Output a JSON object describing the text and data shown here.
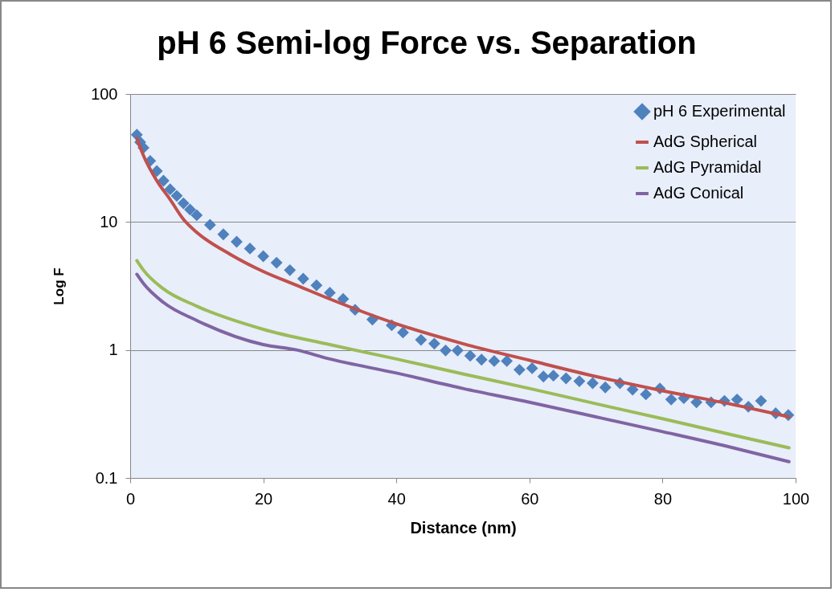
{
  "chart_data": {
    "type": "line",
    "title": "pH 6 Semi-log Force vs. Separation",
    "xlabel": "Distance (nm)",
    "ylabel": "Log F",
    "xlim": [
      0,
      100
    ],
    "xticks": [
      0,
      20,
      40,
      60,
      80,
      100
    ],
    "ylim": [
      0.1,
      100
    ],
    "yticks": [
      0.1,
      1,
      10,
      100
    ],
    "log": "y",
    "grid": "y",
    "legend": "top right",
    "series": [
      {
        "name": "pH 6 Experimental",
        "type": "scatter",
        "marker": "diamond",
        "color": "#4f81bd",
        "x": [
          1,
          1.5,
          2,
          3,
          4,
          5,
          6,
          7,
          8,
          9,
          10,
          12,
          14,
          16,
          18,
          20,
          22,
          24,
          26,
          28,
          30,
          32,
          33.8,
          36.4,
          39.3,
          41,
          43.7,
          45.7,
          47.4,
          49.2,
          51.1,
          52.8,
          54.7,
          56.6,
          58.5,
          60.4,
          62.1,
          63.6,
          65.5,
          67.5,
          69.5,
          71.4,
          73.6,
          75.5,
          77.5,
          79.6,
          81.3,
          83.2,
          85.1,
          87.3,
          89.3,
          91.2,
          92.9,
          94.8,
          97,
          98.9
        ],
        "values": [
          48,
          42,
          38,
          30,
          25,
          21,
          18,
          16,
          14,
          12.5,
          11.3,
          9.5,
          8,
          7,
          6.2,
          5.4,
          4.8,
          4.2,
          3.6,
          3.2,
          2.8,
          2.5,
          2.06,
          1.73,
          1.56,
          1.37,
          1.2,
          1.12,
          0.99,
          0.99,
          0.9,
          0.84,
          0.82,
          0.82,
          0.7,
          0.72,
          0.62,
          0.63,
          0.6,
          0.57,
          0.55,
          0.51,
          0.55,
          0.49,
          0.45,
          0.5,
          0.41,
          0.42,
          0.39,
          0.39,
          0.4,
          0.41,
          0.36,
          0.4,
          0.32,
          0.31
        ]
      },
      {
        "name": "AdG Spherical",
        "type": "line",
        "color": "#c0504d",
        "x": [
          1,
          2,
          4,
          6,
          8,
          10,
          15,
          20,
          25,
          30,
          40,
          50,
          60,
          70,
          80,
          90,
          99
        ],
        "values": [
          45,
          33,
          21,
          15,
          10.5,
          8.3,
          5.6,
          4.1,
          3.2,
          2.5,
          1.6,
          1.12,
          0.83,
          0.62,
          0.48,
          0.38,
          0.3
        ]
      },
      {
        "name": "AdG Pyramidal",
        "type": "line",
        "color": "#9bbb59",
        "x": [
          1,
          2,
          5,
          10,
          20,
          30,
          40,
          50,
          60,
          70,
          80,
          90,
          99
        ],
        "values": [
          5,
          4.2,
          3,
          2.2,
          1.45,
          1.1,
          0.85,
          0.65,
          0.5,
          0.38,
          0.29,
          0.22,
          0.172
        ]
      },
      {
        "name": "AdG Conical",
        "type": "line",
        "color": "#8064a2",
        "x": [
          1,
          2,
          5,
          10,
          20,
          25,
          30,
          40,
          50,
          60,
          70,
          80,
          90,
          99
        ],
        "values": [
          3.9,
          3.3,
          2.35,
          1.7,
          1.1,
          1,
          0.85,
          0.66,
          0.5,
          0.39,
          0.3,
          0.23,
          0.175,
          0.134
        ]
      }
    ]
  }
}
